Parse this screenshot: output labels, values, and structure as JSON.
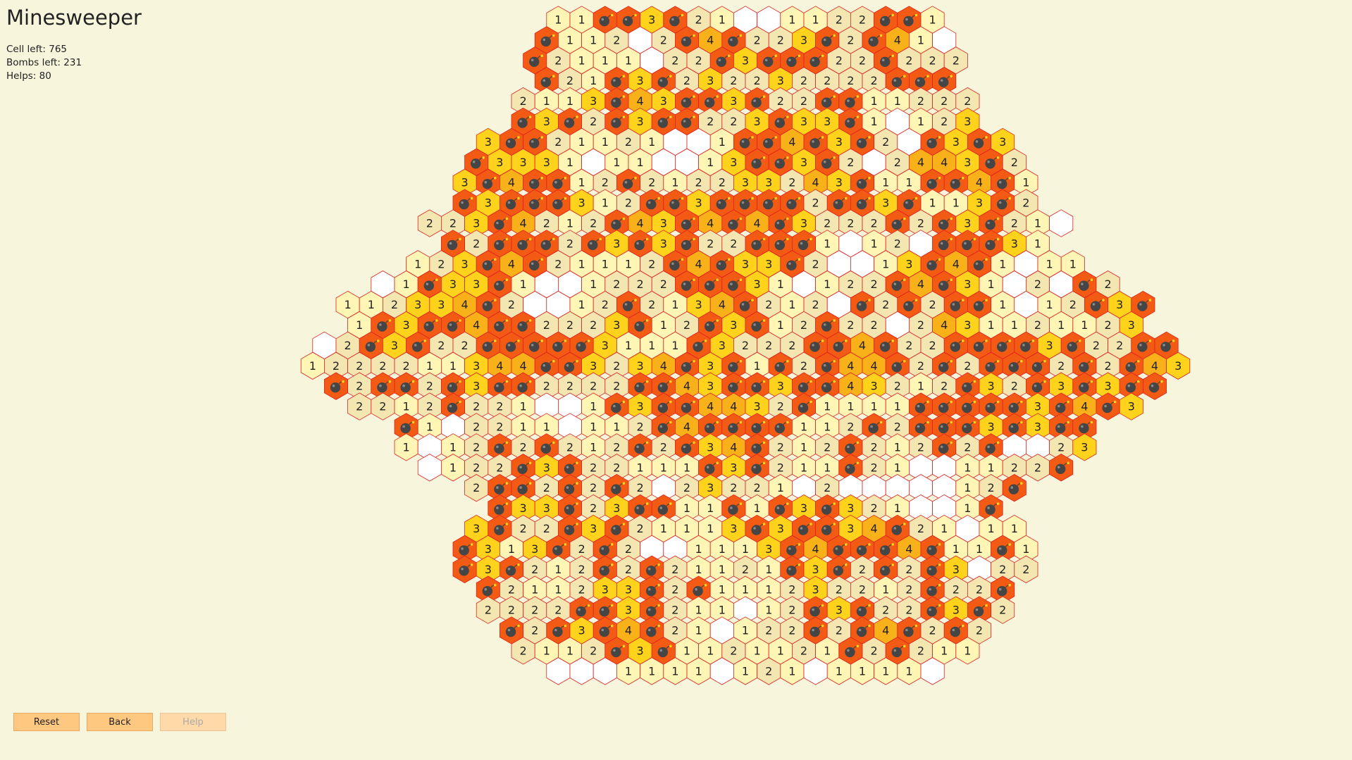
{
  "app": {
    "title": "Minesweeper"
  },
  "stats": {
    "cells_left_label": "Cell left: 765",
    "bombs_left_label": "Bombs left: 231",
    "helps_label": "Helps: 80"
  },
  "buttons": {
    "reset": "Reset",
    "back": "Back",
    "help": "Help"
  },
  "colors": {
    "background": "#f7f6dc",
    "cell_empty": "#ffffff",
    "cell_1": "#fff5b5",
    "cell_2": "#f3e6b0",
    "cell_3": "#ffd21c",
    "cell_4": "#f9b11a",
    "cell_bomb": "#f35a14",
    "grid_line": "#e02020",
    "bomb_icon": "#454545"
  },
  "icons": {
    "bomb": "bomb-icon"
  },
  "board": {
    "shape": "hexagon",
    "cell_legend": {
      "0": "revealed-empty",
      "1": "1",
      "2": "2",
      "3": "3",
      "4": "4",
      "B": "bomb"
    },
    "rows": [
      "11BB3B21001122BB1",
      "B112 2B4B223B2B410",
      "B2111 22B3BBB22B222",
      "B21B3B232232222BBB",
      "2113B43BB3B22BB11222",
      "B3B2B3BB223B33B10123",
      "3BB21121 01BB4B3B20B3B3",
      "B33310110013BB3B202443B2",
      "3B4BB12B212233243B11BB4B1",
      "B3BBB312BB3BBBB2BB3B113B2",
      "223B4212B43B4B4B3222B2B3B210",
      "B2BBB2B3B3B22BBB10120BBB31",
      "123B4B21112B4B33B20013B4B1011",
      "01B33B1001222BBB310122B4B31020B2",
      "112334B20012B2134B2120B2B2BB1012B3B",
      "1B3BB4BB2223B12B3B12B2202431121123",
      "02B3B22BBBBB3111B3222BB4B22BBBB3B22BB",
      "1222211344BB3234B3B1B2B44B2B2BBB2B2B43",
      "B2BB2B3BB2222BB43BB3BB43212B32B3B3BB",
      "2212B221001B3BB4432B1111BBBBB3B4B3",
      "B1022110112B4BBBB112B2BBB3B3BB",
      "1012B2B212B2B34B212B212B2B0023",
      "0122B3B22111B3B211B21001122B",
      "2BB2B2B2023221020000012B",
      "B33B23BB11B1B3B321001B",
      "3B22B3B21113B3BB34B21011",
      "B313B2B2001113B4BBB4B11B1",
      "B3B212B2B21121B3B2B2B3022",
      "B211233B2B111232212B22B",
      "2222BB3B211012B3B22B3B2",
      "B2B3B4B210122B2B4B2B2",
      "2112B3B1121121B2B211",
      "00011110121011110"
    ]
  }
}
